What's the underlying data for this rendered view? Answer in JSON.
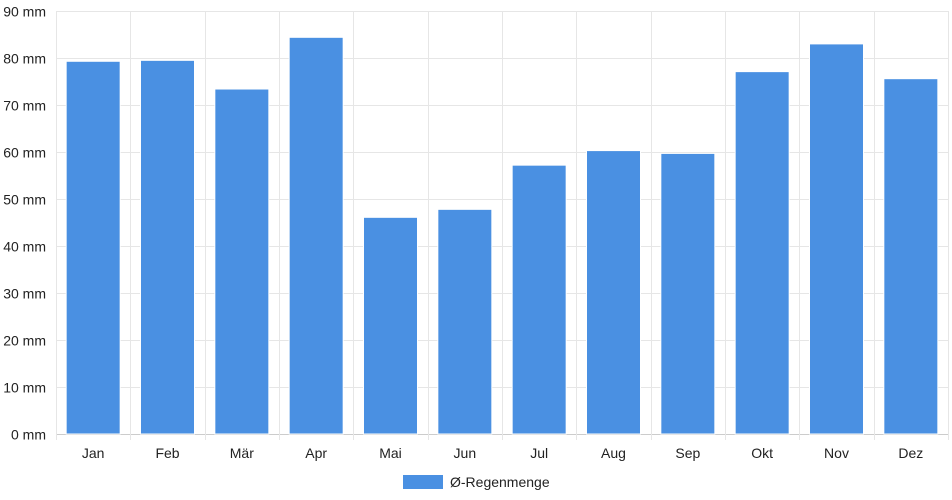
{
  "chart_data": {
    "type": "bar",
    "categories": [
      "Jan",
      "Feb",
      "Mär",
      "Apr",
      "Mai",
      "Jun",
      "Jul",
      "Aug",
      "Sep",
      "Okt",
      "Nov",
      "Dez"
    ],
    "series": [
      {
        "name": "Ø-Regenmenge",
        "values": [
          79.3,
          79.5,
          73.4,
          84.4,
          46.1,
          47.8,
          57.2,
          60.3,
          59.7,
          77.1,
          83.0,
          75.6
        ],
        "color": "#4a90e2"
      }
    ],
    "y_unit": "mm",
    "ylim": [
      0,
      90
    ],
    "y_ticks": [
      0,
      10,
      20,
      30,
      40,
      50,
      60,
      70,
      80,
      90
    ],
    "y_tick_labels": [
      "0 mm",
      "10 mm",
      "20 mm",
      "30 mm",
      "40 mm",
      "50 mm",
      "60 mm",
      "70 mm",
      "80 mm",
      "90 mm"
    ],
    "title": "",
    "xlabel": "",
    "ylabel": "",
    "grid": true,
    "legend": {
      "position": "bottom-center"
    }
  }
}
